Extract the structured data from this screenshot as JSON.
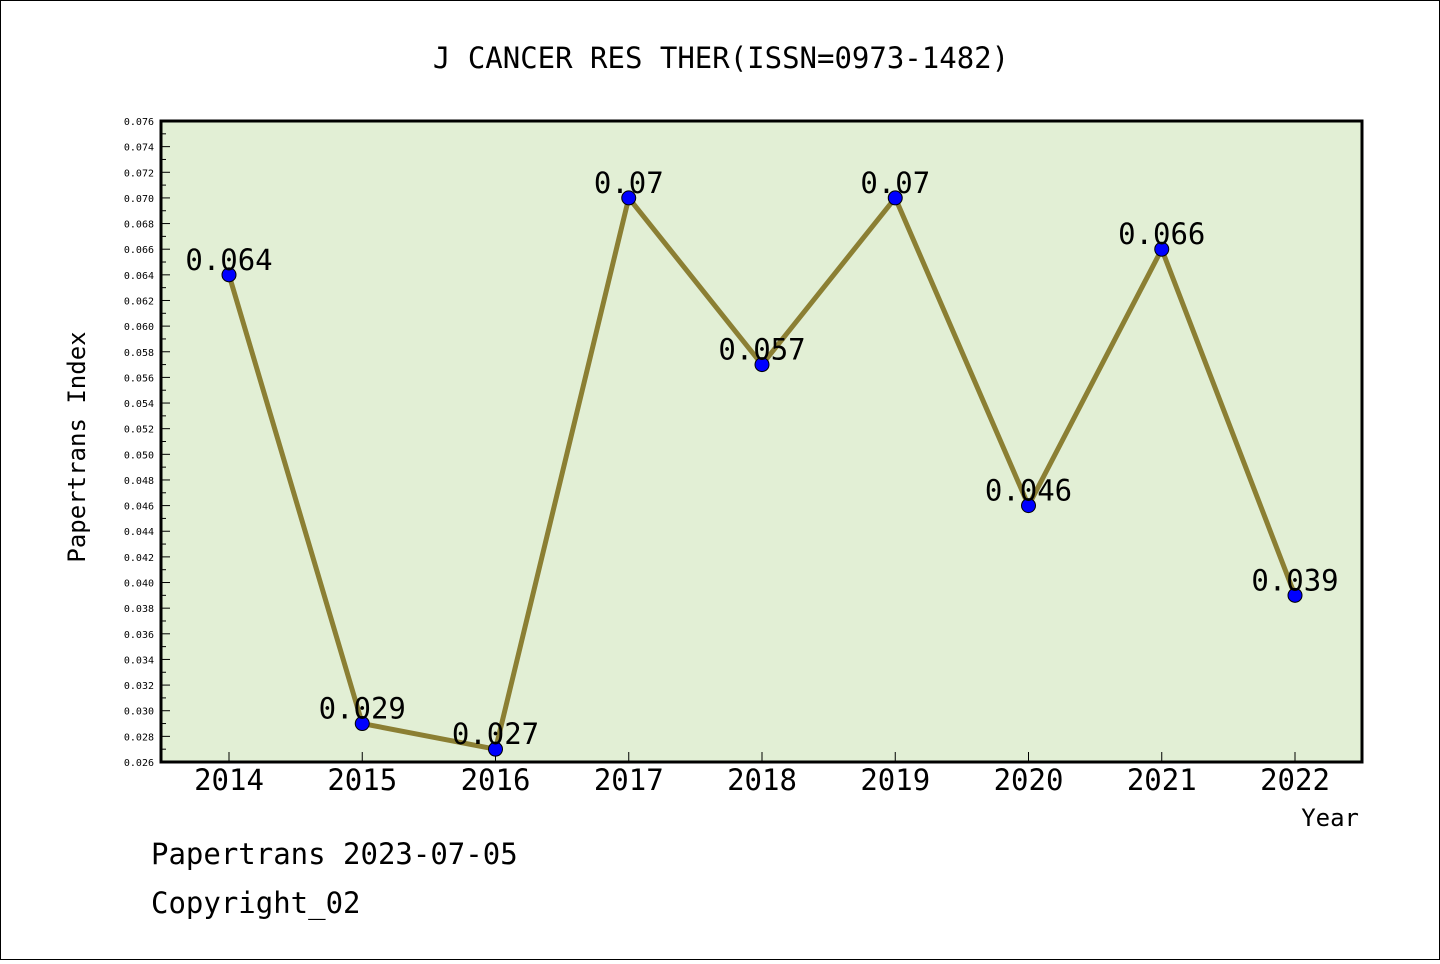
{
  "chart_data": {
    "type": "line",
    "title": "J CANCER RES THER(ISSN=0973-1482)",
    "xlabel": "Year",
    "ylabel": "Papertrans Index",
    "categories": [
      "2014",
      "2015",
      "2016",
      "2017",
      "2018",
      "2019",
      "2020",
      "2021",
      "2022"
    ],
    "series": [
      {
        "values": [
          0.064,
          0.029,
          0.027,
          0.07,
          0.057,
          0.07,
          0.046,
          0.066,
          0.039
        ]
      }
    ],
    "data_labels": [
      "0.064",
      "0.029",
      "0.027",
      "0.07",
      "0.057",
      "0.07",
      "0.046",
      "0.066",
      "0.039"
    ],
    "ylim": [
      0.026,
      0.076
    ],
    "ytick_step": 0.002,
    "y_tick_labels": [
      "0.026",
      "0.028",
      "0.030",
      "0.032",
      "0.034",
      "0.036",
      "0.038",
      "0.040",
      "0.042",
      "0.044",
      "0.046",
      "0.048",
      "0.050",
      "0.052",
      "0.054",
      "0.056",
      "0.058",
      "0.060",
      "0.062",
      "0.064",
      "0.066",
      "0.068",
      "0.070",
      "0.072",
      "0.074",
      "0.076"
    ],
    "grid": false,
    "legend": "none",
    "colors": {
      "plot_background": "#e2efd5",
      "line": "#8b7f33",
      "marker": "#0000ff"
    }
  },
  "footer": {
    "line1": "Papertrans 2023-07-05",
    "line2": "Copyright_02"
  }
}
